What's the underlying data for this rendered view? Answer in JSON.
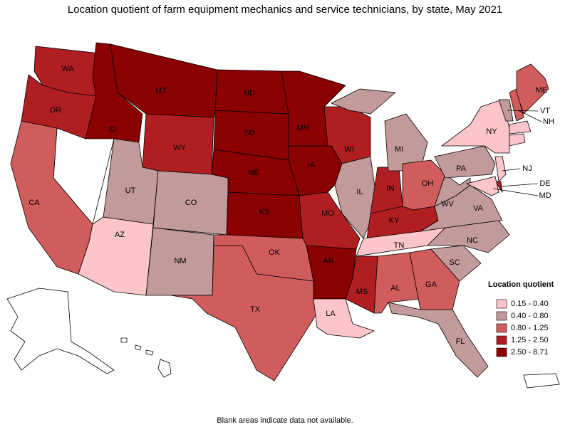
{
  "title": "Location quotient of farm equipment mechanics and service technicians, by state, May 2021",
  "legend": {
    "title": "Location quotient",
    "classes": [
      {
        "label": "0.15 - 0.40",
        "color": "#fcc5ca"
      },
      {
        "label": "0.40 - 0.80",
        "color": "#c39a9a"
      },
      {
        "label": "0.80 - 1.25",
        "color": "#d05c5c"
      },
      {
        "label": "1.25 - 2.50",
        "color": "#b01e22"
      },
      {
        "label": "2.50 - 8.71",
        "color": "#8b0000"
      }
    ]
  },
  "states": [
    {
      "label": "WA",
      "class": 3
    },
    {
      "label": "OR",
      "class": 3
    },
    {
      "label": "CA",
      "class": 2
    },
    {
      "label": "ID",
      "class": 4
    },
    {
      "label": "MT",
      "class": 4
    },
    {
      "label": "WY",
      "class": 3
    },
    {
      "label": "UT",
      "class": 1
    },
    {
      "label": "CO",
      "class": 1
    },
    {
      "label": "AZ",
      "class": 0
    },
    {
      "label": "NM",
      "class": 1
    },
    {
      "label": "ND",
      "class": 4
    },
    {
      "label": "SD",
      "class": 4
    },
    {
      "label": "NE",
      "class": 4
    },
    {
      "label": "KS",
      "class": 4
    },
    {
      "label": "OK",
      "class": 2
    },
    {
      "label": "TX",
      "class": 2
    },
    {
      "label": "MN",
      "class": 4
    },
    {
      "label": "IA",
      "class": 4
    },
    {
      "label": "MO",
      "class": 3
    },
    {
      "label": "AR",
      "class": 4
    },
    {
      "label": "LA",
      "class": 0
    },
    {
      "label": "MS",
      "class": 3
    },
    {
      "label": "WI",
      "class": 3
    },
    {
      "label": "IL",
      "class": 1
    },
    {
      "label": "IN",
      "class": 3
    },
    {
      "label": "MI",
      "class": 1
    },
    {
      "label": "OH",
      "class": 2
    },
    {
      "label": "KY",
      "class": 3
    },
    {
      "label": "TN",
      "class": 0
    },
    {
      "label": "AL",
      "class": 2
    },
    {
      "label": "GA",
      "class": 2
    },
    {
      "label": "FL",
      "class": 1
    },
    {
      "label": "SC",
      "class": 1
    },
    {
      "label": "NC",
      "class": 1
    },
    {
      "label": "VA",
      "class": 1
    },
    {
      "label": "WV",
      "class": 1
    },
    {
      "label": "PA",
      "class": 1
    },
    {
      "label": "NY",
      "class": 0
    },
    {
      "label": "NJ",
      "class": 0
    },
    {
      "label": "DE",
      "class": 3
    },
    {
      "label": "MD",
      "class": 0
    },
    {
      "label": "VT",
      "class": 1
    },
    {
      "label": "NH",
      "class": 2
    },
    {
      "label": "ME",
      "class": 2
    },
    {
      "label": null,
      "class": 0
    },
    {
      "label": null,
      "class": 0
    }
  ],
  "footnote": "Blank areas indicate data not available."
}
